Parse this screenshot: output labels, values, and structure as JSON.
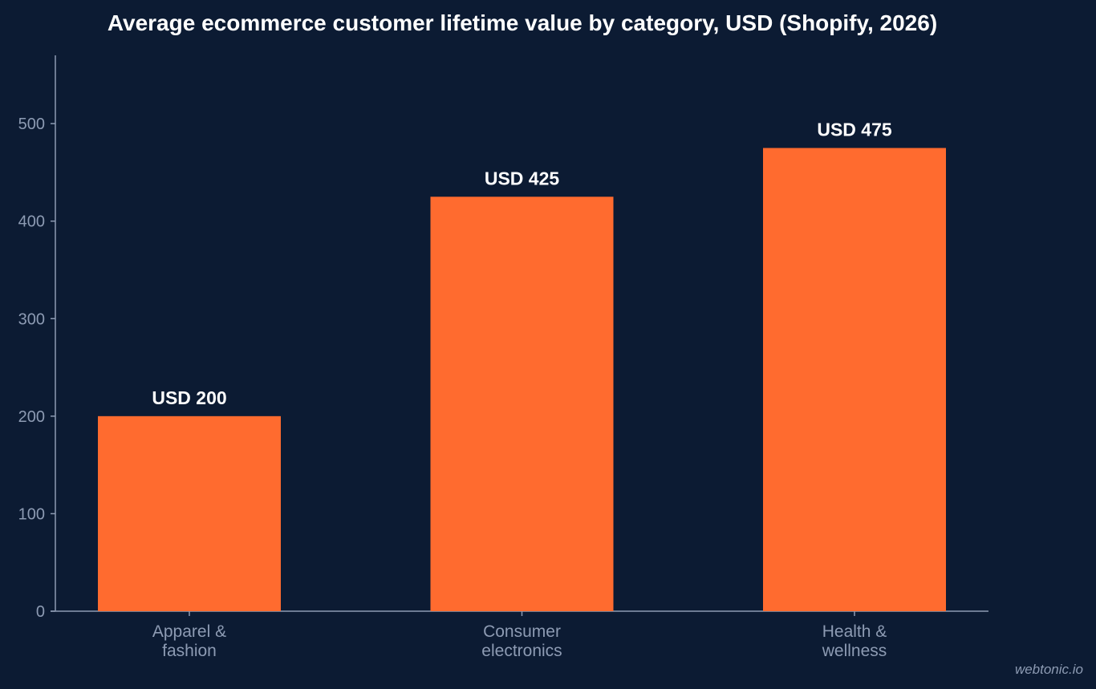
{
  "chart_data": {
    "type": "bar",
    "title": "Average ecommerce customer lifetime value by category, USD (Shopify, 2026)",
    "categories": [
      [
        "Apparel &",
        "fashion"
      ],
      [
        "Consumer",
        "electronics"
      ],
      [
        "Health &",
        "wellness"
      ]
    ],
    "values": [
      200,
      425,
      475
    ],
    "data_labels": [
      "USD 200",
      "USD 425",
      "USD 475"
    ],
    "xlabel": "",
    "ylabel": "",
    "ylim": [
      0,
      570
    ],
    "yticks": [
      0,
      100,
      200,
      300,
      400,
      500
    ],
    "grid": false,
    "legend": "none",
    "colors": {
      "background": "#0c1b33",
      "bar": "#ff6b2f",
      "axis": "#8d9bb3",
      "tick_text": "#8d9bb3",
      "title_text": "#ffffff",
      "data_label_text": "#ffffff"
    }
  },
  "watermark": "webtonic.io"
}
